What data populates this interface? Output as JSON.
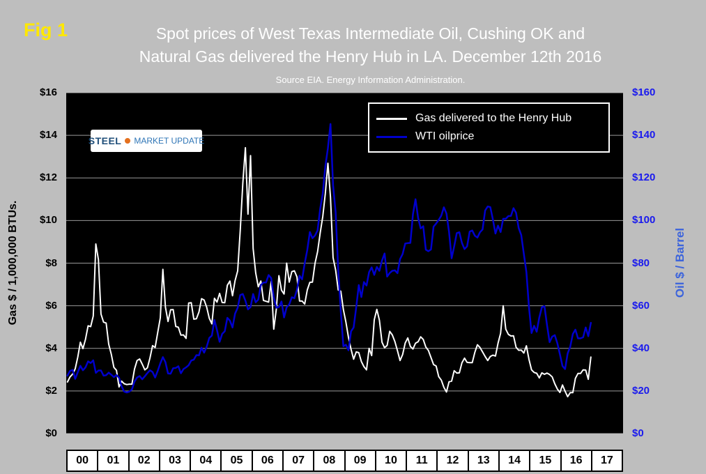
{
  "figure": {
    "fig_label": "Fig 1",
    "title_line1": "Spot prices of West Texas Intermediate Oil, Cushing OK and",
    "title_line2": "Natural Gas delivered the Henry Hub in LA. December 12th 2016",
    "subtitle": "Source EIA. Energy Information Administration."
  },
  "logo": {
    "steel": "STEEL",
    "rest": "MARKET UPDATE"
  },
  "axes": {
    "left_title": "Gas $ / 1,000,000 BTUs.",
    "right_title": "Oil $ / Barrel",
    "left_ticks": [
      "$16",
      "$14",
      "$12",
      "$10",
      "$8",
      "$6",
      "$4",
      "$2",
      "$0"
    ],
    "right_ticks": [
      "$160",
      "$140",
      "$120",
      "$100",
      "$80",
      "$60",
      "$40",
      "$20",
      "$0"
    ],
    "x_labels": [
      "00",
      "01",
      "02",
      "03",
      "04",
      "05",
      "06",
      "07",
      "08",
      "09",
      "10",
      "11",
      "12",
      "13",
      "14",
      "15",
      "16",
      "17"
    ]
  },
  "legend": [
    {
      "label": "Gas delivered to the Henry Hub",
      "color": "#ffffff"
    },
    {
      "label": "WTI oilprice",
      "color": "#0000cc"
    }
  ],
  "colors": {
    "background": "#bebebe",
    "plot_bg": "#000000",
    "grid": "#9a9a9a",
    "title": "#ffffff",
    "fig_label": "#ffe800",
    "gas_line": "#ffffff",
    "oil_line": "#0000cc",
    "left_axis": "#000000",
    "right_axis": "#1a1aee",
    "right_axis_title": "#3c64dc",
    "year_cell_bg": "#ffffff",
    "logo_navy": "#1f4e79",
    "logo_orange": "#e4701e",
    "logo_blue": "#2e75b6"
  },
  "chart_data": {
    "type": "line",
    "title": "Spot prices of West Texas Intermediate Oil, Cushing OK and Natural Gas delivered the Henry Hub in LA. December 12th 2016",
    "subtitle": "Source EIA. Energy Information Administration.",
    "x_unit": "month",
    "x_start": "2000-01",
    "x_end": "2016-12",
    "x_categories_years": [
      "00",
      "01",
      "02",
      "03",
      "04",
      "05",
      "06",
      "07",
      "08",
      "09",
      "10",
      "11",
      "12",
      "13",
      "14",
      "15",
      "16",
      "17"
    ],
    "grid": true,
    "legend_position": "top-right-inside",
    "left_axis": {
      "label": "Gas $ / 1,000,000 BTUs.",
      "range": [
        0,
        16
      ],
      "tick_step": 2
    },
    "right_axis": {
      "label": "Oil $ / Barrel",
      "range": [
        0,
        160
      ],
      "tick_step": 20
    },
    "series": [
      {
        "name": "Gas delivered to the Henry Hub",
        "axis": "left",
        "color": "#ffffff",
        "values": [
          2.42,
          2.66,
          2.79,
          3.04,
          3.59,
          4.29,
          3.99,
          4.43,
          5.06,
          5.02,
          5.52,
          8.9,
          8.17,
          5.61,
          5.23,
          5.19,
          4.19,
          3.72,
          3.11,
          2.97,
          2.19,
          2.46,
          2.34,
          2.3,
          2.32,
          2.32,
          3.03,
          3.43,
          3.5,
          3.26,
          2.99,
          3.09,
          3.55,
          4.13,
          4.04,
          4.74,
          5.43,
          7.71,
          5.93,
          5.26,
          5.81,
          5.82,
          5.03,
          4.99,
          4.62,
          4.63,
          4.47,
          6.13,
          6.14,
          5.37,
          5.39,
          5.71,
          6.33,
          6.27,
          5.93,
          5.41,
          5.15,
          6.35,
          6.17,
          6.58,
          6.15,
          6.14,
          6.96,
          7.16,
          6.47,
          7.18,
          7.63,
          9.53,
          11.75,
          13.42,
          10.3,
          13.05,
          8.69,
          7.54,
          6.89,
          7.16,
          6.25,
          6.21,
          6.17,
          7.14,
          4.9,
          5.85,
          7.41,
          6.73,
          6.55,
          8.0,
          7.11,
          7.6,
          7.64,
          7.35,
          6.22,
          6.22,
          6.08,
          6.74,
          7.1,
          7.11,
          7.99,
          8.54,
          9.41,
          10.18,
          11.27,
          12.69,
          11.09,
          8.26,
          7.67,
          6.74,
          6.68,
          5.82,
          5.24,
          4.52,
          3.96,
          3.49,
          3.83,
          3.8,
          3.38,
          3.14,
          2.99,
          4.0,
          3.66,
          5.34,
          5.83,
          5.32,
          4.29,
          4.03,
          4.14,
          4.8,
          4.63,
          4.32,
          3.89,
          3.43,
          3.71,
          4.25,
          4.49,
          4.09,
          3.97,
          4.24,
          4.31,
          4.54,
          4.42,
          4.06,
          3.9,
          3.57,
          3.24,
          3.17,
          2.67,
          2.51,
          2.17,
          1.95,
          2.43,
          2.46,
          2.95,
          2.84,
          2.85,
          3.32,
          3.54,
          3.34,
          3.33,
          3.33,
          3.81,
          4.17,
          4.04,
          3.83,
          3.62,
          3.43,
          3.62,
          3.68,
          3.64,
          4.24,
          4.71,
          6.0,
          4.9,
          4.66,
          4.58,
          4.59,
          4.05,
          3.91,
          3.92,
          3.78,
          4.12,
          3.48,
          2.99,
          2.87,
          2.83,
          2.61,
          2.85,
          2.78,
          2.84,
          2.77,
          2.66,
          2.34,
          2.09,
          1.93,
          2.28,
          1.99,
          1.73,
          1.92,
          1.92,
          2.59,
          2.82,
          2.82,
          2.99,
          2.98,
          2.55,
          3.59
        ]
      },
      {
        "name": "WTI oilprice",
        "axis": "right",
        "color": "#0000cc",
        "values": [
          27.2,
          29.4,
          29.9,
          25.7,
          28.8,
          31.8,
          29.7,
          31.1,
          33.9,
          33.1,
          34.4,
          28.5,
          29.6,
          29.6,
          27.2,
          27.4,
          28.6,
          27.6,
          26.5,
          27.5,
          26.2,
          22.2,
          19.7,
          19.3,
          19.7,
          20.7,
          24.4,
          26.3,
          27.0,
          25.5,
          26.9,
          28.4,
          29.7,
          28.9,
          26.3,
          29.4,
          32.9,
          35.9,
          33.5,
          28.2,
          28.1,
          30.7,
          30.8,
          31.6,
          28.3,
          30.3,
          31.1,
          32.1,
          34.3,
          34.7,
          36.8,
          36.7,
          40.3,
          38.0,
          40.8,
          44.9,
          46.0,
          53.3,
          48.5,
          43.1,
          46.8,
          48.0,
          54.3,
          53.0,
          49.8,
          56.3,
          59.0,
          65.0,
          65.5,
          62.4,
          58.3,
          59.4,
          65.5,
          61.6,
          62.9,
          69.7,
          70.9,
          70.9,
          74.4,
          73.0,
          63.9,
          59.1,
          59.4,
          62.0,
          54.5,
          59.3,
          60.6,
          64.0,
          63.5,
          67.5,
          74.1,
          72.4,
          79.9,
          86.2,
          94.6,
          91.7,
          93.0,
          95.4,
          105.5,
          112.6,
          125.4,
          134.0,
          145.3,
          116.6,
          103.9,
          76.7,
          57.4,
          41.0,
          41.7,
          39.1,
          48.0,
          49.8,
          59.2,
          69.7,
          64.1,
          71.1,
          69.5,
          75.8,
          78.0,
          74.5,
          78.2,
          76.4,
          81.2,
          84.5,
          73.7,
          75.4,
          76.4,
          76.6,
          75.3,
          81.9,
          84.3,
          89.2,
          89.4,
          89.5,
          102.9,
          110.0,
          101.3,
          96.3,
          97.3,
          86.3,
          85.6,
          86.4,
          97.1,
          98.6,
          100.3,
          102.3,
          106.2,
          103.3,
          94.7,
          82.3,
          87.9,
          94.1,
          94.5,
          89.5,
          86.6,
          87.9,
          94.8,
          95.3,
          92.9,
          92.0,
          94.5,
          95.8,
          104.7,
          106.6,
          106.3,
          100.5,
          93.9,
          97.6,
          94.6,
          100.8,
          100.8,
          102.1,
          102.2,
          105.8,
          103.6,
          96.5,
          93.2,
          84.4,
          75.8,
          59.3,
          47.2,
          50.6,
          47.8,
          54.5,
          59.3,
          59.8,
          50.9,
          42.9,
          45.5,
          46.2,
          42.4,
          37.2,
          31.7,
          30.3,
          37.6,
          40.8,
          46.7,
          48.8,
          44.7,
          44.7,
          45.2,
          49.8,
          45.7,
          52.0
        ]
      }
    ]
  }
}
